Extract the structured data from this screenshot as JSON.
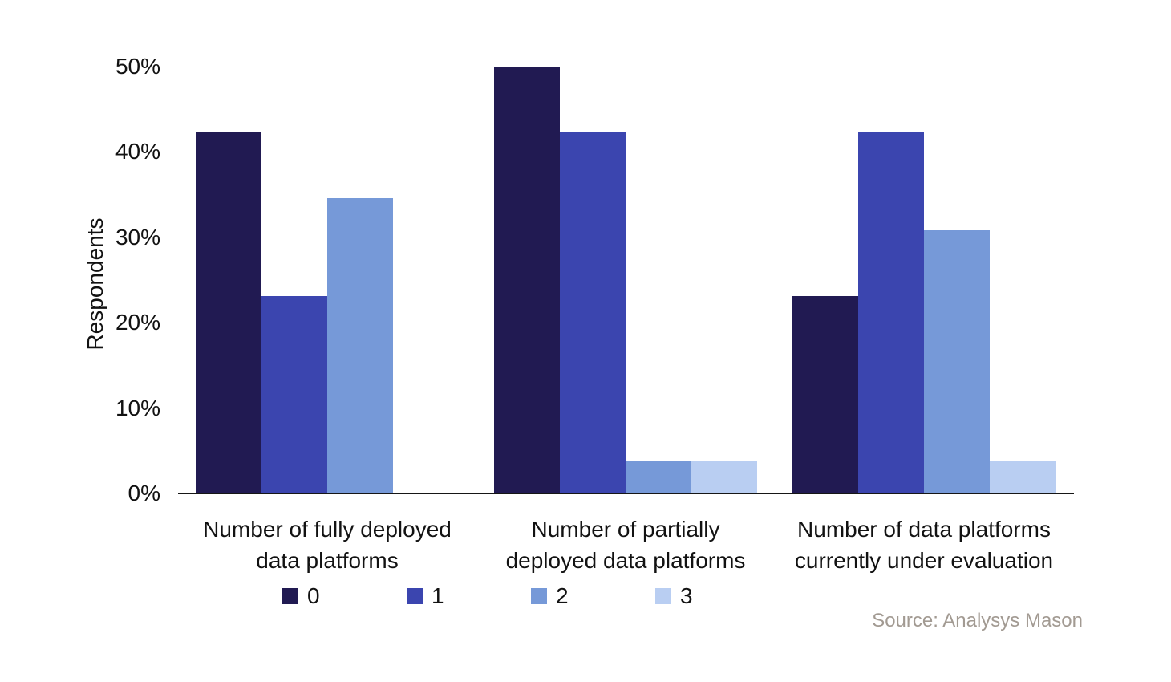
{
  "chart_data": {
    "type": "bar",
    "title": "",
    "ylabel": "Respondents",
    "xlabel": "",
    "ylim": [
      0,
      50
    ],
    "ytick_labels": [
      "0%",
      "10%",
      "20%",
      "30%",
      "40%",
      "50%"
    ],
    "grid": false,
    "legend_position": "bottom",
    "categories": [
      {
        "lines": [
          "Number of fully deployed",
          "data platforms"
        ]
      },
      {
        "lines": [
          "Number of partially",
          "deployed data platforms"
        ]
      },
      {
        "lines": [
          "Number of data platforms",
          "currently under evaluation"
        ]
      }
    ],
    "series": [
      {
        "name": "0",
        "color": "#211a52",
        "values": [
          42.3,
          50.0,
          23.1
        ]
      },
      {
        "name": "1",
        "color": "#3b45af",
        "values": [
          23.1,
          42.3,
          42.3
        ]
      },
      {
        "name": "2",
        "color": "#7699d8",
        "values": [
          34.6,
          3.8,
          30.8
        ]
      },
      {
        "name": "3",
        "color": "#b9cef2",
        "values": [
          0,
          3.8,
          3.8
        ]
      }
    ],
    "source_label": "Source: Analysys Mason",
    "source_color": "#a29a92",
    "axis_color": "#161616",
    "text_color": "#121212",
    "background_color": "#ffffff"
  }
}
